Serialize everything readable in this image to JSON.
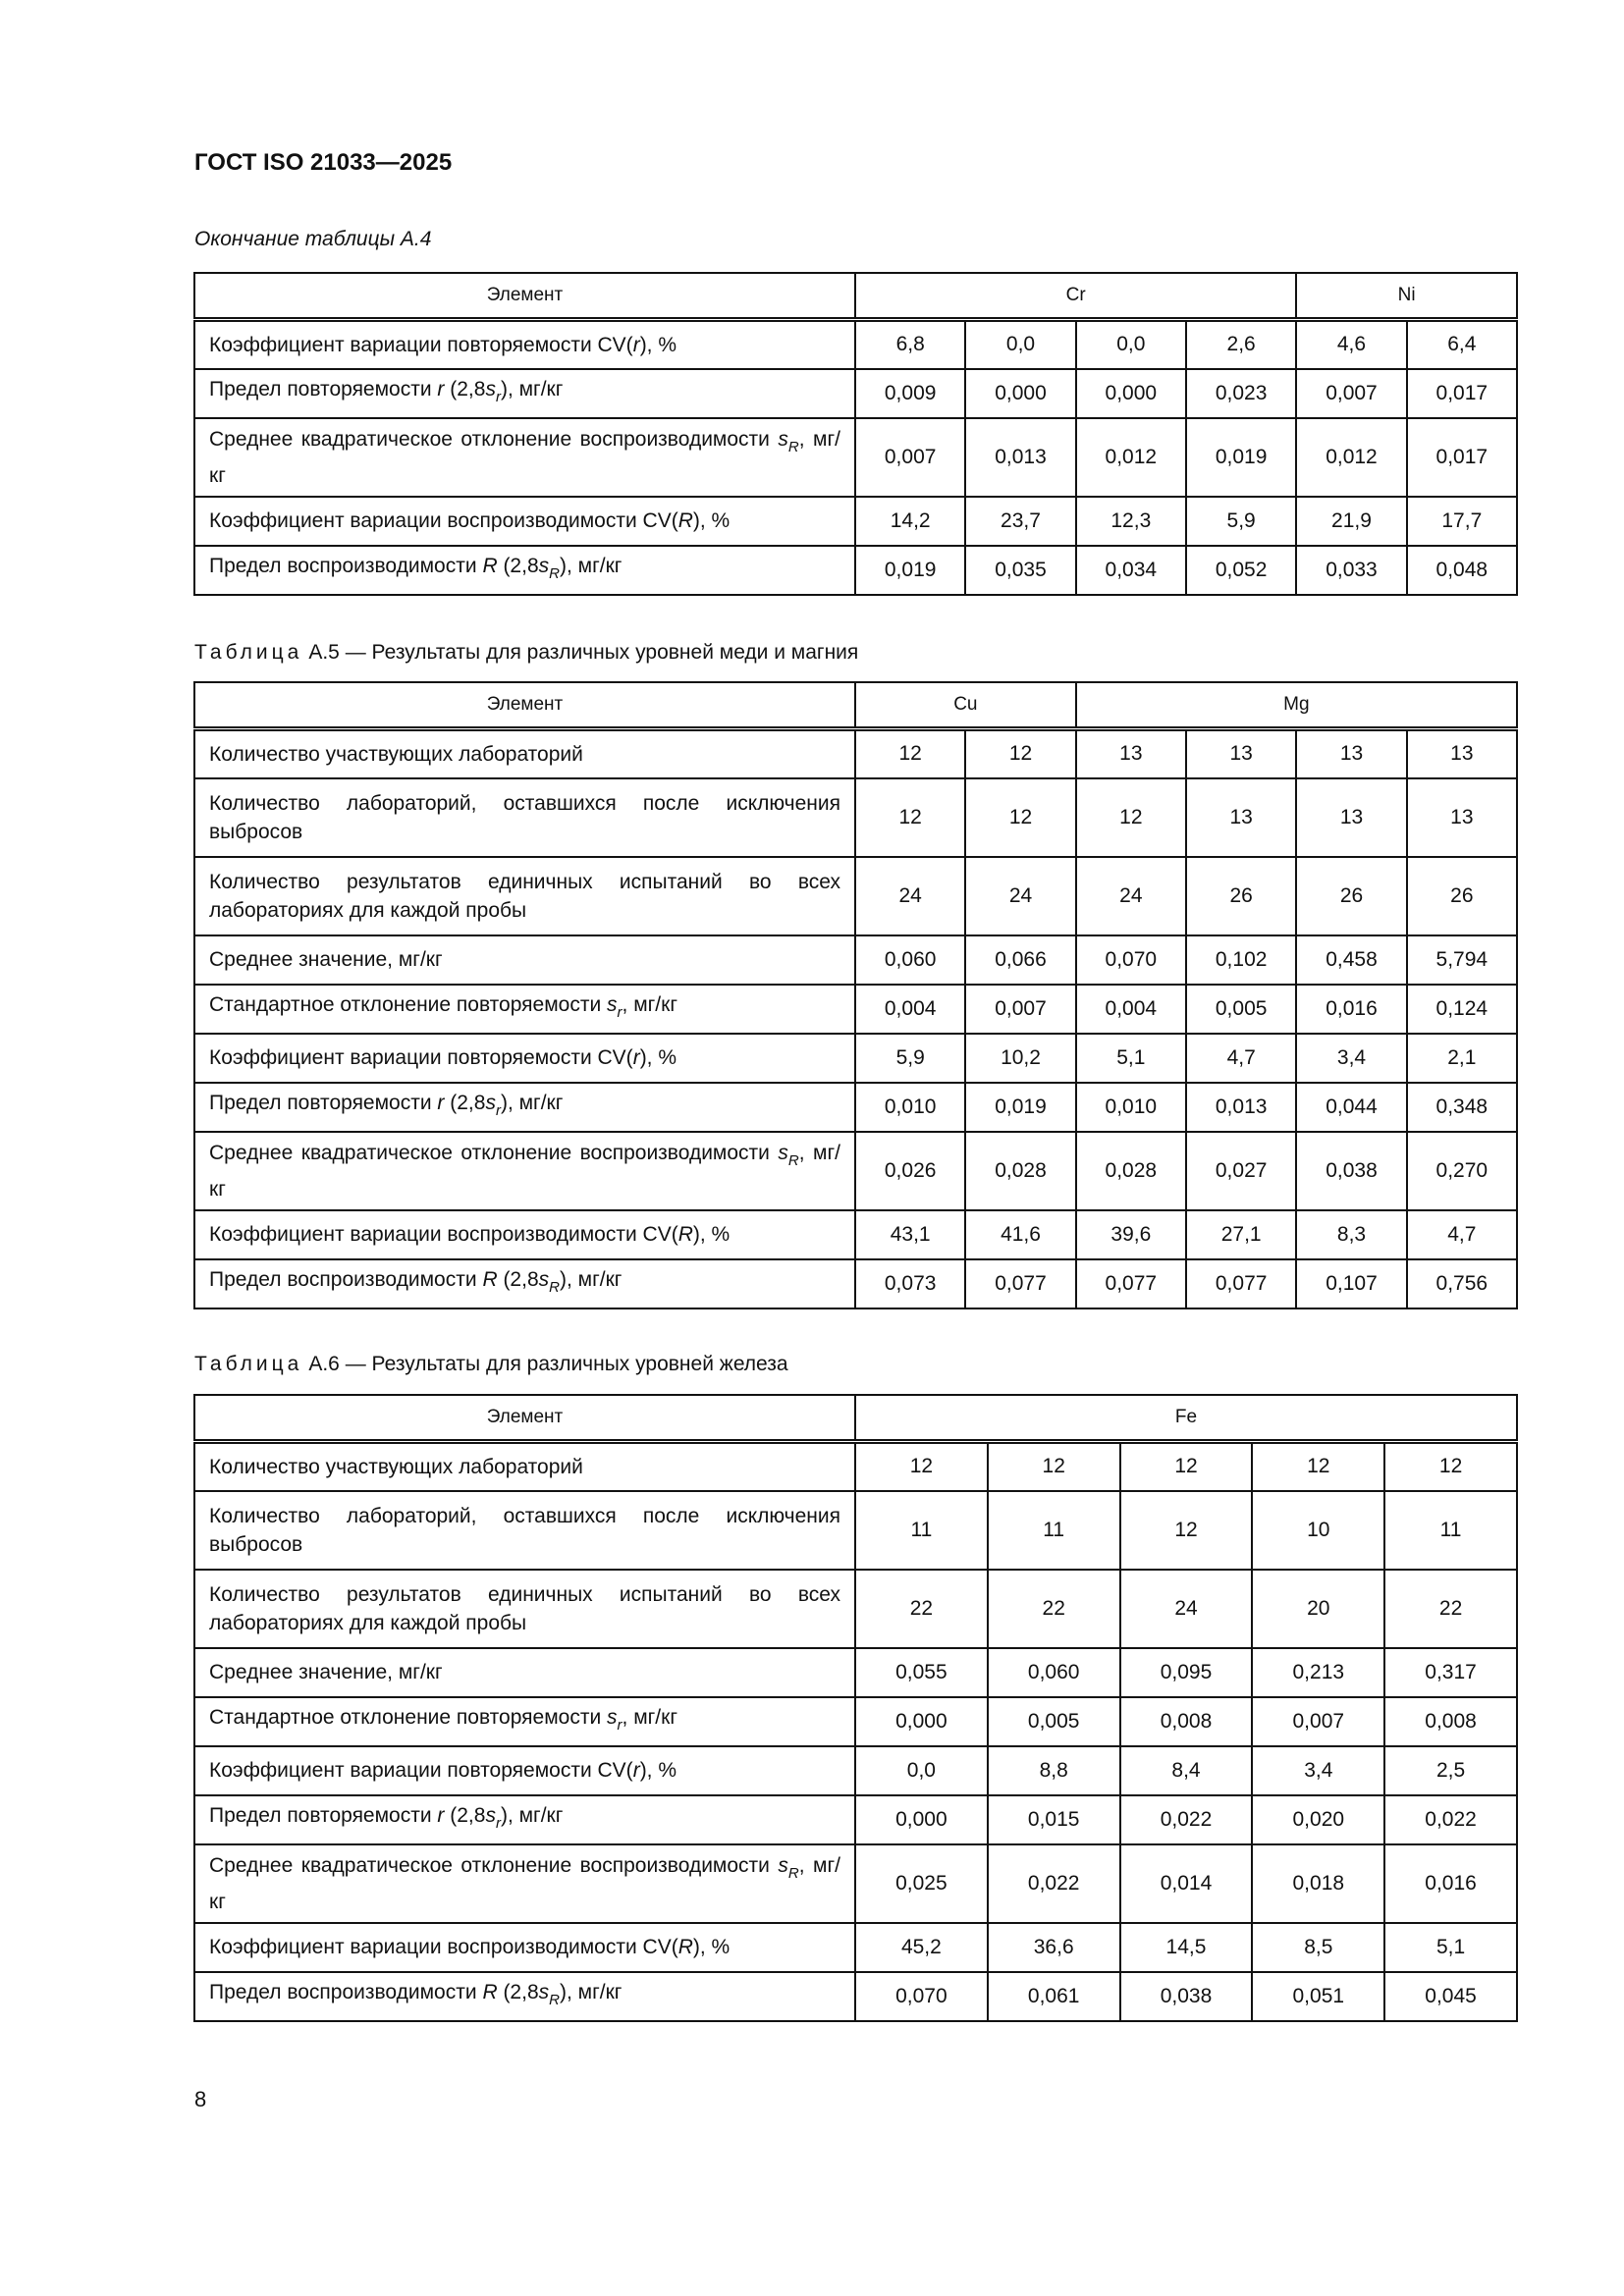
{
  "header": {
    "doc_code": "ГОСТ ISO 21033—2025",
    "continuation": "Окончание таблицы А.4"
  },
  "tables": [
    {
      "caption_prefix": "",
      "caption_text": "",
      "element_label": "Элемент",
      "groups": [
        {
          "name": "Cr",
          "span": 4
        },
        {
          "name": "Ni",
          "span": 2
        }
      ],
      "rows": [
        {
          "label": [
            {
              "t": "Коэффициент вариации повторяемости CV("
            },
            {
              "t": "r",
              "s": "i"
            },
            {
              "t": "), %"
            }
          ],
          "values": [
            "6,8",
            "0,0",
            "0,0",
            "2,6",
            "4,6",
            "6,4"
          ]
        },
        {
          "label": [
            {
              "t": "Предел повторяемости "
            },
            {
              "t": "r",
              "s": "i"
            },
            {
              "t": " (2,8"
            },
            {
              "t": "s",
              "s": "i"
            },
            {
              "t": "r",
              "s": "sub"
            },
            {
              "t": "), мг/кг"
            }
          ],
          "values": [
            "0,009",
            "0,000",
            "0,000",
            "0,023",
            "0,007",
            "0,017"
          ]
        },
        {
          "label": [
            {
              "t": "Среднее квадратическое отклонение воспроизводимости "
            },
            {
              "t": "s",
              "s": "i"
            },
            {
              "t": "R",
              "s": "sub"
            },
            {
              "t": ", мг/кг"
            }
          ],
          "values": [
            "0,007",
            "0,013",
            "0,012",
            "0,019",
            "0,012",
            "0,017"
          ],
          "tall": true
        },
        {
          "label": [
            {
              "t": "Коэффициент вариации воспроизводимости CV("
            },
            {
              "t": "R",
              "s": "i"
            },
            {
              "t": "), %"
            }
          ],
          "values": [
            "14,2",
            "23,7",
            "12,3",
            "5,9",
            "21,9",
            "17,7"
          ]
        },
        {
          "label": [
            {
              "t": "Предел воспроизводимости "
            },
            {
              "t": "R",
              "s": "i"
            },
            {
              "t": " (2,8"
            },
            {
              "t": "s",
              "s": "i"
            },
            {
              "t": "R",
              "s": "sub"
            },
            {
              "t": "), мг/кг"
            }
          ],
          "values": [
            "0,019",
            "0,035",
            "0,034",
            "0,052",
            "0,033",
            "0,048"
          ]
        }
      ]
    },
    {
      "caption_prefix": "Таблица",
      "caption_text": "А.5 — Результаты для различных уровней меди и магния",
      "element_label": "Элемент",
      "groups": [
        {
          "name": "Cu",
          "span": 2
        },
        {
          "name": "Mg",
          "span": 4
        }
      ],
      "rows": [
        {
          "label": [
            {
              "t": "Количество участвующих лабораторий"
            }
          ],
          "values": [
            "12",
            "12",
            "13",
            "13",
            "13",
            "13"
          ]
        },
        {
          "label": [
            {
              "t": "Количество лабораторий, оставшихся после исключения выбросов"
            }
          ],
          "values": [
            "12",
            "12",
            "12",
            "13",
            "13",
            "13"
          ],
          "tall": true
        },
        {
          "label": [
            {
              "t": "Количество результатов единичных испытаний во всех лабораториях для каждой пробы"
            }
          ],
          "values": [
            "24",
            "24",
            "24",
            "26",
            "26",
            "26"
          ],
          "tall": true
        },
        {
          "label": [
            {
              "t": "Среднее значение, мг/кг"
            }
          ],
          "values": [
            "0,060",
            "0,066",
            "0,070",
            "0,102",
            "0,458",
            "5,794"
          ]
        },
        {
          "label": [
            {
              "t": "Стандартное отклонение повторяемости "
            },
            {
              "t": "s",
              "s": "i"
            },
            {
              "t": "r",
              "s": "sub"
            },
            {
              "t": ", мг/кг"
            }
          ],
          "values": [
            "0,004",
            "0,007",
            "0,004",
            "0,005",
            "0,016",
            "0,124"
          ]
        },
        {
          "label": [
            {
              "t": "Коэффициент вариации повторяемости CV("
            },
            {
              "t": "r",
              "s": "i"
            },
            {
              "t": "), %"
            }
          ],
          "values": [
            "5,9",
            "10,2",
            "5,1",
            "4,7",
            "3,4",
            "2,1"
          ]
        },
        {
          "label": [
            {
              "t": "Предел повторяемости "
            },
            {
              "t": "r",
              "s": "i"
            },
            {
              "t": " (2,8"
            },
            {
              "t": "s",
              "s": "i"
            },
            {
              "t": "r",
              "s": "sub"
            },
            {
              "t": "), мг/кг"
            }
          ],
          "values": [
            "0,010",
            "0,019",
            "0,010",
            "0,013",
            "0,044",
            "0,348"
          ]
        },
        {
          "label": [
            {
              "t": "Среднее квадратическое отклонение воспроизводимости "
            },
            {
              "t": "s",
              "s": "i"
            },
            {
              "t": "R",
              "s": "sub"
            },
            {
              "t": ", мг/кг"
            }
          ],
          "values": [
            "0,026",
            "0,028",
            "0,028",
            "0,027",
            "0,038",
            "0,270"
          ],
          "tall": true
        },
        {
          "label": [
            {
              "t": "Коэффициент вариации воспроизводимости CV("
            },
            {
              "t": "R",
              "s": "i"
            },
            {
              "t": "), %"
            }
          ],
          "values": [
            "43,1",
            "41,6",
            "39,6",
            "27,1",
            "8,3",
            "4,7"
          ]
        },
        {
          "label": [
            {
              "t": "Предел воспроизводимости "
            },
            {
              "t": "R",
              "s": "i"
            },
            {
              "t": " (2,8"
            },
            {
              "t": "s",
              "s": "i"
            },
            {
              "t": "R",
              "s": "sub"
            },
            {
              "t": "), мг/кг"
            }
          ],
          "values": [
            "0,073",
            "0,077",
            "0,077",
            "0,077",
            "0,107",
            "0,756"
          ]
        }
      ]
    },
    {
      "caption_prefix": "Таблица",
      "caption_text": "А.6 — Результаты для различных уровней железа",
      "element_label": "Элемент",
      "groups": [
        {
          "name": "Fe",
          "span": 5
        }
      ],
      "rows": [
        {
          "label": [
            {
              "t": "Количество участвующих лабораторий"
            }
          ],
          "values": [
            "12",
            "12",
            "12",
            "12",
            "12"
          ]
        },
        {
          "label": [
            {
              "t": "Количество лабораторий, оставшихся после исключения выбросов"
            }
          ],
          "values": [
            "11",
            "11",
            "12",
            "10",
            "11"
          ],
          "tall": true
        },
        {
          "label": [
            {
              "t": "Количество результатов единичных испытаний во всех лабораториях для каждой пробы"
            }
          ],
          "values": [
            "22",
            "22",
            "24",
            "20",
            "22"
          ],
          "tall": true
        },
        {
          "label": [
            {
              "t": "Среднее значение, мг/кг"
            }
          ],
          "values": [
            "0,055",
            "0,060",
            "0,095",
            "0,213",
            "0,317"
          ]
        },
        {
          "label": [
            {
              "t": "Стандартное отклонение повторяемости "
            },
            {
              "t": "s",
              "s": "i"
            },
            {
              "t": "r",
              "s": "sub"
            },
            {
              "t": ", мг/кг"
            }
          ],
          "values": [
            "0,000",
            "0,005",
            "0,008",
            "0,007",
            "0,008"
          ]
        },
        {
          "label": [
            {
              "t": "Коэффициент вариации повторяемости CV("
            },
            {
              "t": "r",
              "s": "i"
            },
            {
              "t": "), %"
            }
          ],
          "values": [
            "0,0",
            "8,8",
            "8,4",
            "3,4",
            "2,5"
          ]
        },
        {
          "label": [
            {
              "t": "Предел повторяемости "
            },
            {
              "t": "r",
              "s": "i"
            },
            {
              "t": " (2,8"
            },
            {
              "t": "s",
              "s": "i"
            },
            {
              "t": "r",
              "s": "sub"
            },
            {
              "t": "), мг/кг"
            }
          ],
          "values": [
            "0,000",
            "0,015",
            "0,022",
            "0,020",
            "0,022"
          ]
        },
        {
          "label": [
            {
              "t": "Среднее квадратическое отклонение воспроизводимости "
            },
            {
              "t": "s",
              "s": "i"
            },
            {
              "t": "R",
              "s": "sub"
            },
            {
              "t": ", мг/кг"
            }
          ],
          "values": [
            "0,025",
            "0,022",
            "0,014",
            "0,018",
            "0,016"
          ],
          "tall": true
        },
        {
          "label": [
            {
              "t": "Коэффициент вариации воспроизводимости CV("
            },
            {
              "t": "R",
              "s": "i"
            },
            {
              "t": "), %"
            }
          ],
          "values": [
            "45,2",
            "36,6",
            "14,5",
            "8,5",
            "5,1"
          ]
        },
        {
          "label": [
            {
              "t": "Предел воспроизводимости "
            },
            {
              "t": "R",
              "s": "i"
            },
            {
              "t": " (2,8"
            },
            {
              "t": "s",
              "s": "i"
            },
            {
              "t": "R",
              "s": "sub"
            },
            {
              "t": "), мг/кг"
            }
          ],
          "values": [
            "0,070",
            "0,061",
            "0,038",
            "0,051",
            "0,045"
          ]
        }
      ]
    }
  ],
  "footer": {
    "page_number": "8"
  }
}
